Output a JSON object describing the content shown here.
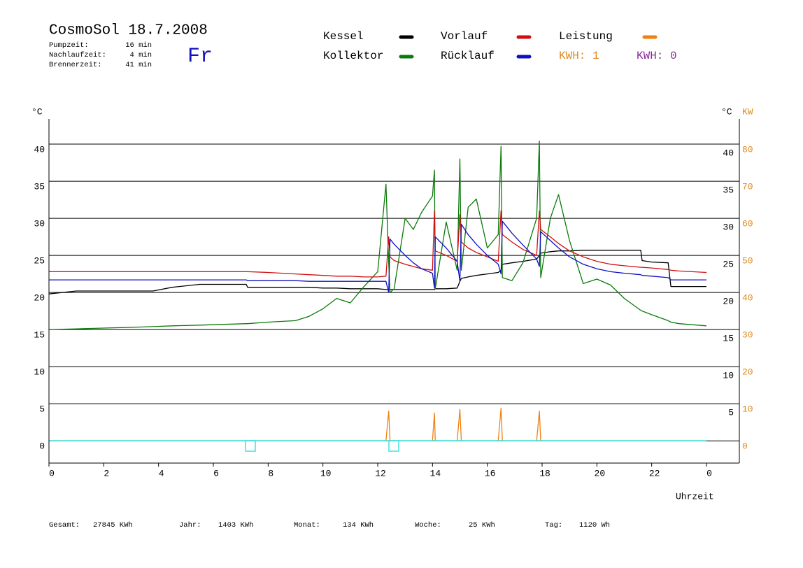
{
  "chart_data": {
    "type": "line",
    "title": "CosmoSol 18.7.2008",
    "weekday": "Fr",
    "info": [
      {
        "label": "Pumpzeit:",
        "value": "16 min"
      },
      {
        "label": "Nachlaufzeit:",
        "value": "4 min"
      },
      {
        "label": "Brennerzeit:",
        "value": "41 min"
      }
    ],
    "kwh_labels": [
      {
        "text": "KWH: 1",
        "color": "#e08a1e"
      },
      {
        "text": "KWH: 0",
        "color": "#8a2a9a"
      }
    ],
    "y_label": "°C",
    "y2_label": "KW",
    "x_label": "Uhrzeit",
    "xlim": [
      0,
      25.2
    ],
    "xticks": [
      0,
      2,
      4,
      6,
      8,
      10,
      12,
      14,
      16,
      18,
      20,
      22,
      {
        "value": 24,
        "label": "0"
      }
    ],
    "ylim": [
      -3,
      43.4
    ],
    "yticks": [
      0,
      5,
      10,
      15,
      20,
      25,
      30,
      35,
      40
    ],
    "y2lim": [
      -6,
      86.8
    ],
    "y2ticks": [
      0,
      10,
      20,
      30,
      40,
      50,
      60,
      70,
      80
    ],
    "grid": true,
    "x": [
      0,
      1,
      2,
      3,
      3.8,
      4.5,
      5.5,
      7.2,
      7.25,
      8,
      9,
      9.5,
      10,
      10.5,
      11,
      11.5,
      12,
      12.3,
      12.4,
      12.45,
      12.6,
      13,
      13.3,
      13.6,
      14.0,
      14.07,
      14.1,
      14.5,
      14.9,
      15.0,
      15.05,
      15.3,
      15.6,
      16.0,
      16.4,
      16.5,
      16.55,
      16.9,
      17.3,
      17.8,
      17.9,
      17.95,
      18.3,
      18.6,
      19.0,
      19.5,
      20,
      20.5,
      21,
      21.6,
      21.65,
      22,
      22.6,
      22.7,
      23,
      24
    ],
    "series": [
      {
        "name": "Kessel",
        "color": "#000000",
        "values": [
          19.8,
          20.2,
          20.2,
          20.2,
          20.2,
          20.7,
          21.1,
          21.1,
          20.7,
          20.7,
          20.7,
          20.7,
          20.6,
          20.6,
          20.5,
          20.5,
          20.5,
          20.4,
          20.4,
          20.4,
          20.4,
          20.4,
          20.4,
          20.4,
          20.4,
          20.4,
          20.5,
          20.5,
          20.6,
          21.5,
          21.9,
          22.1,
          22.3,
          22.5,
          22.7,
          23.0,
          23.8,
          24.0,
          24.2,
          24.5,
          25.0,
          25.3,
          25.5,
          25.6,
          25.6,
          25.7,
          25.7,
          25.7,
          25.7,
          25.7,
          24.3,
          24.1,
          24.0,
          20.8,
          20.8,
          20.8
        ]
      },
      {
        "name": "Kollektor",
        "color": "#0a7a0a",
        "values": [
          15.0,
          15.1,
          15.2,
          15.3,
          15.4,
          15.5,
          15.6,
          15.8,
          15.8,
          16.0,
          16.2,
          16.8,
          17.8,
          19.2,
          18.6,
          20.8,
          22.8,
          34.6,
          24.0,
          20.0,
          20.5,
          30.0,
          28.5,
          30.8,
          33.0,
          36.5,
          20.5,
          29.5,
          23.0,
          38.0,
          23.0,
          31.5,
          32.6,
          26.0,
          27.8,
          39.7,
          22.0,
          21.6,
          24.0,
          30.0,
          40.4,
          22.0,
          30.0,
          33.2,
          27.0,
          21.2,
          21.8,
          21.0,
          19.2,
          17.6,
          17.5,
          17.0,
          16.2,
          16.0,
          15.8,
          15.5
        ]
      },
      {
        "name": "Vorlauf",
        "color": "#d01010",
        "values": [
          22.8,
          22.8,
          22.8,
          22.8,
          22.8,
          22.8,
          22.8,
          22.8,
          22.8,
          22.7,
          22.5,
          22.4,
          22.3,
          22.2,
          22.2,
          22.1,
          22.1,
          22.2,
          27.5,
          24.8,
          24.3,
          23.8,
          23.5,
          23.2,
          23.0,
          31.0,
          25.6,
          25.0,
          24.2,
          30.5,
          26.8,
          26.0,
          25.4,
          24.8,
          24.2,
          31.0,
          27.8,
          26.8,
          25.8,
          25.0,
          31.0,
          28.5,
          27.5,
          26.6,
          25.6,
          24.8,
          24.2,
          23.8,
          23.6,
          23.4,
          23.4,
          23.3,
          23.1,
          23.0,
          22.9,
          22.7
        ]
      },
      {
        "name": "Rücklauf",
        "color": "#1010c0",
        "values": [
          21.7,
          21.7,
          21.7,
          21.7,
          21.7,
          21.7,
          21.7,
          21.7,
          21.6,
          21.6,
          21.6,
          21.5,
          21.5,
          21.5,
          21.5,
          21.5,
          21.5,
          21.5,
          20.0,
          27.2,
          26.5,
          25.0,
          24.0,
          23.2,
          22.6,
          20.6,
          27.5,
          26.0,
          24.2,
          21.5,
          29.2,
          27.8,
          26.5,
          25.0,
          23.8,
          22.5,
          29.6,
          28.0,
          26.4,
          24.5,
          23.5,
          28.2,
          27.0,
          26.0,
          24.8,
          23.8,
          23.2,
          22.8,
          22.6,
          22.4,
          22.3,
          22.2,
          22.0,
          21.7,
          21.7,
          21.7
        ]
      },
      {
        "name": "Leistung",
        "color": "#f08010",
        "axis": "y2",
        "values": [
          0,
          0,
          0,
          0,
          0,
          0,
          0,
          0,
          0,
          0,
          0,
          0,
          0,
          0,
          0,
          0,
          0,
          0,
          8.0,
          0,
          0,
          0,
          0,
          0,
          0,
          7.5,
          0,
          0,
          0,
          8.5,
          0,
          0,
          0,
          0,
          0,
          8.8,
          0,
          0,
          0,
          0,
          8.0,
          0,
          0,
          0,
          0,
          0,
          0,
          0,
          0,
          0,
          0,
          0,
          0,
          0,
          0,
          0
        ]
      }
    ],
    "totals": [
      {
        "label": "Gesamt:",
        "value": "27845 KWh"
      },
      {
        "label": "Jahr:",
        "value": "1403 KWh"
      },
      {
        "label": "Monat:",
        "value": "134 KWh"
      },
      {
        "label": "Woche:",
        "value": "25 KWh"
      },
      {
        "label": "Tag:",
        "value": "1120 Wh"
      }
    ]
  }
}
